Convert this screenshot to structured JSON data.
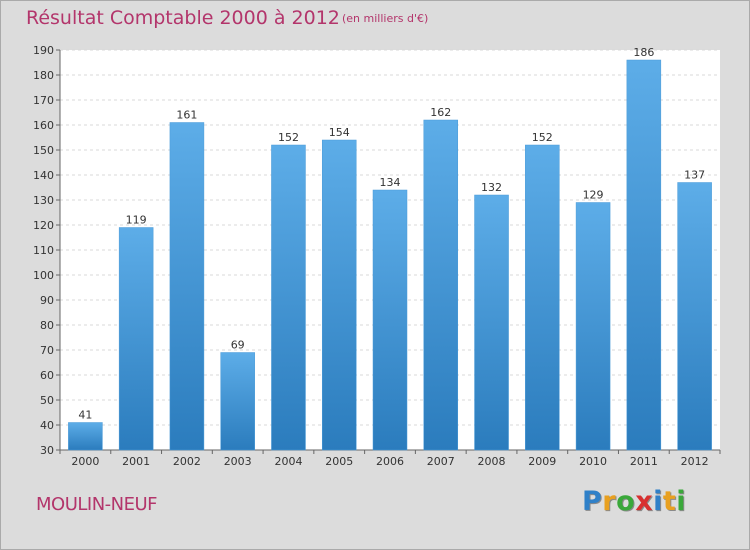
{
  "header": {
    "title": "Résultat Comptable 2000 à 2012",
    "subtitle": "(en milliers d'€)"
  },
  "footer": {
    "commune": "MOULIN-NEUF",
    "logo_letters": [
      {
        "char": "P",
        "color": "#2f80c8"
      },
      {
        "char": "r",
        "color": "#e8a020"
      },
      {
        "char": "o",
        "color": "#3aa83a"
      },
      {
        "char": "x",
        "color": "#d83030"
      },
      {
        "char": "i",
        "color": "#2f80c8"
      },
      {
        "char": "t",
        "color": "#e8a020"
      },
      {
        "char": "i",
        "color": "#3aa83a"
      }
    ]
  },
  "colors": {
    "background": "#dcdcdc",
    "plot_background": "#ffffff",
    "bar_top": "#5dade8",
    "bar_bottom": "#2b7cbd",
    "accent": "#b3356b"
  },
  "chart_data": {
    "type": "bar",
    "categories": [
      "2000",
      "2001",
      "2002",
      "2003",
      "2004",
      "2005",
      "2006",
      "2007",
      "2008",
      "2009",
      "2010",
      "2011",
      "2012"
    ],
    "values": [
      41,
      119,
      161,
      69,
      152,
      154,
      134,
      162,
      132,
      152,
      129,
      186,
      137
    ],
    "data_labels": [
      "41",
      "119",
      "161",
      "69",
      "152",
      "154",
      "134",
      "162",
      "132",
      "152",
      "129",
      "186",
      "137"
    ],
    "title": "Résultat Comptable 2000 à 2012",
    "subtitle": "(en milliers d'€)",
    "ylim": [
      30,
      190
    ],
    "yticks": [
      30,
      40,
      50,
      60,
      70,
      80,
      90,
      100,
      110,
      120,
      130,
      140,
      150,
      160,
      170,
      180,
      190
    ],
    "ytick_labels": [
      "30",
      "40",
      "50",
      "60",
      "70",
      "80",
      "90",
      "100",
      "110",
      "120",
      "130",
      "140",
      "150",
      "160",
      "170",
      "180",
      "190"
    ],
    "grid": true,
    "legend": "none"
  }
}
